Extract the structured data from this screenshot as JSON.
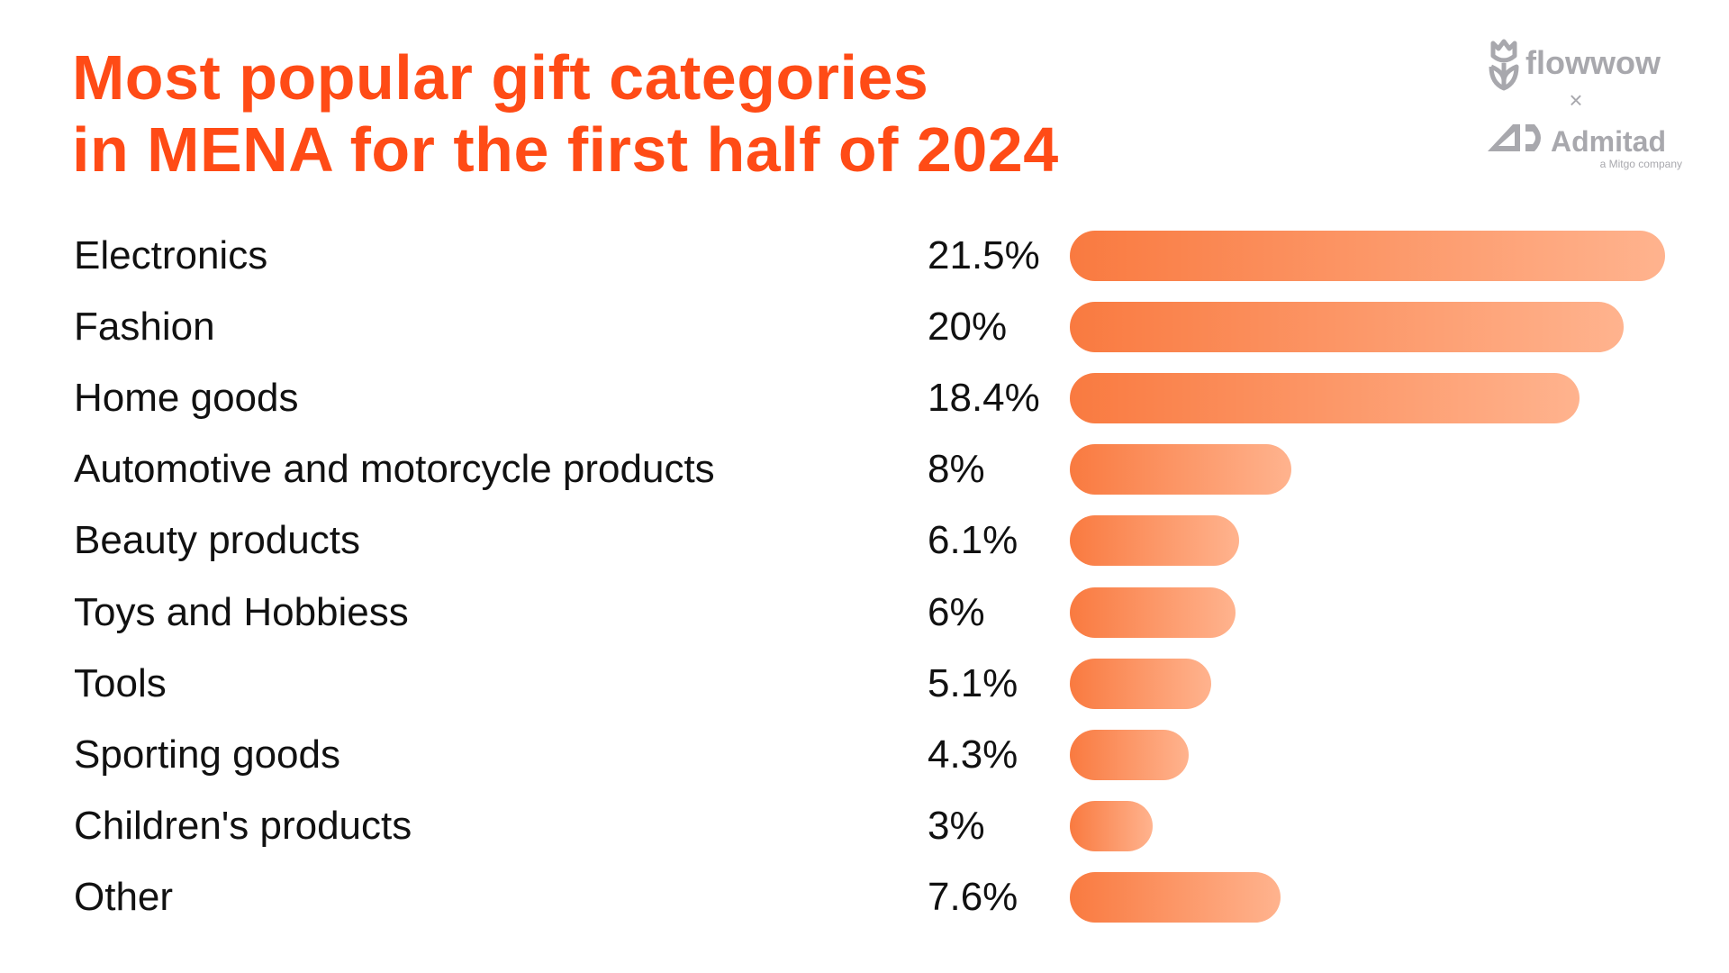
{
  "title_line1": "Most popular gift categories",
  "title_line2": "in MENA for the first half of 2024",
  "logo": {
    "brand1": "flowwow",
    "separator": "×",
    "brand2": "Admitad",
    "brand2_tagline": "a Mitgo company"
  },
  "colors": {
    "title": "#ff4b16",
    "bar_start": "#f97a40",
    "bar_end": "#ffb38e",
    "logo": "#a8a8ad"
  },
  "chart_data": {
    "type": "bar",
    "orientation": "horizontal",
    "title": "Most popular gift categories in MENA for the first half of 2024",
    "categories": [
      "Electronics",
      "Fashion",
      "Home goods",
      "Automotive and motorcycle products",
      "Beauty products",
      "Toys and Hobbiess",
      "Tools",
      "Sporting goods",
      "Children's products",
      "Other"
    ],
    "values": [
      21.5,
      20,
      18.4,
      8,
      6.1,
      6,
      5.1,
      4.3,
      3,
      7.6
    ],
    "labels": [
      "21.5%",
      "20%",
      "18.4%",
      "8%",
      "6.1%",
      "6%",
      "5.1%",
      "4.3%",
      "3%",
      "7.6%"
    ],
    "unit": "%",
    "grid": false
  }
}
